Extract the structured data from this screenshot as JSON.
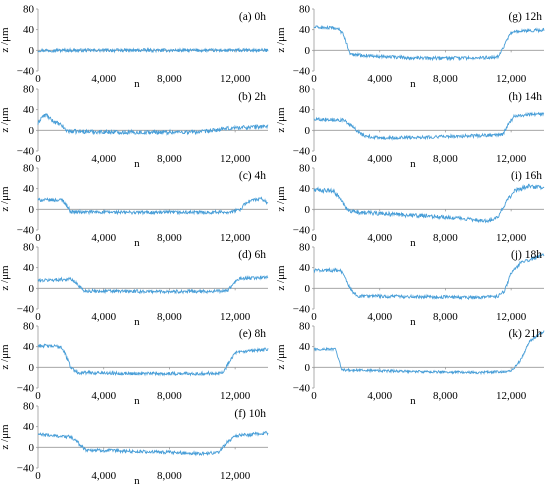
{
  "figure": {
    "xlabel": "n",
    "ylabel": "z /μm",
    "line_color": "#4a9fd8",
    "axis_color": "#9a9a9a",
    "text_color": "#000000"
  },
  "chart_data": [
    {
      "id": "a",
      "type": "line",
      "label": "(a) 0h",
      "xlabel": "n",
      "ylabel": "z /μm",
      "xlim": [
        0,
        14000
      ],
      "ylim": [
        -40,
        80
      ],
      "xticks": [
        {
          "v": 0,
          "t": "0"
        },
        {
          "v": 4000,
          "t": "4,000"
        },
        {
          "v": 8000,
          "t": "8,000"
        },
        {
          "v": 12000,
          "t": "12,000"
        }
      ],
      "yticks": [
        {
          "v": -40,
          "t": "−40"
        },
        {
          "v": 0,
          "t": "0"
        },
        {
          "v": 40,
          "t": "40"
        },
        {
          "v": 80,
          "t": "80"
        }
      ],
      "series": [
        {
          "x": [
            0,
            2000,
            4000,
            6000,
            8000,
            10000,
            12000,
            14000
          ],
          "y": [
            0,
            0,
            0,
            0,
            0,
            0,
            0,
            0
          ],
          "noise": 2
        }
      ]
    },
    {
      "id": "b",
      "type": "line",
      "label": "(b) 2h",
      "xlabel": "n",
      "ylabel": "z /μm",
      "xlim": [
        0,
        14000
      ],
      "ylim": [
        -40,
        80
      ],
      "xticks": [
        {
          "v": 0,
          "t": "0"
        },
        {
          "v": 4000,
          "t": "4,000"
        },
        {
          "v": 8000,
          "t": "8,000"
        },
        {
          "v": 12000,
          "t": "12,000"
        }
      ],
      "yticks": [
        {
          "v": -40,
          "t": "−40"
        },
        {
          "v": 0,
          "t": "0"
        },
        {
          "v": 40,
          "t": "40"
        },
        {
          "v": 80,
          "t": "80"
        }
      ],
      "series": [
        {
          "x": [
            0,
            200,
            500,
            800,
            1100,
            1500,
            1700,
            2000,
            6000,
            10000,
            12000,
            14000
          ],
          "y": [
            12,
            25,
            30,
            20,
            15,
            8,
            0,
            -2,
            -4,
            -3,
            5,
            8
          ],
          "noise": 2.5
        }
      ]
    },
    {
      "id": "c",
      "type": "line",
      "label": "(c) 4h",
      "xlabel": "n",
      "ylabel": "z /μm",
      "xlim": [
        0,
        14000
      ],
      "ylim": [
        -40,
        80
      ],
      "xticks": [
        {
          "v": 0,
          "t": "0"
        },
        {
          "v": 4000,
          "t": "4,000"
        },
        {
          "v": 8000,
          "t": "8,000"
        },
        {
          "v": 12000,
          "t": "12,000"
        }
      ],
      "yticks": [
        {
          "v": -40,
          "t": "−40"
        },
        {
          "v": 0,
          "t": "0"
        },
        {
          "v": 40,
          "t": "40"
        },
        {
          "v": 80,
          "t": "80"
        }
      ],
      "series": [
        {
          "x": [
            0,
            1500,
            1700,
            2000,
            6000,
            10000,
            11800,
            12300,
            12700,
            13100,
            13600,
            14000
          ],
          "y": [
            18,
            18,
            10,
            -5,
            -6,
            -6,
            -5,
            0,
            14,
            18,
            20,
            12
          ],
          "noise": 2
        }
      ]
    },
    {
      "id": "d",
      "type": "line",
      "label": "(d) 6h",
      "xlabel": "n",
      "ylabel": "z /μm",
      "xlim": [
        0,
        14000
      ],
      "ylim": [
        -40,
        80
      ],
      "xticks": [
        {
          "v": 0,
          "t": "0"
        },
        {
          "v": 4000,
          "t": "4,000"
        },
        {
          "v": 8000,
          "t": "8,000"
        },
        {
          "v": 12000,
          "t": "12,000"
        }
      ],
      "yticks": [
        {
          "v": -40,
          "t": "−40"
        },
        {
          "v": 0,
          "t": "0"
        },
        {
          "v": 40,
          "t": "40"
        },
        {
          "v": 80,
          "t": "80"
        }
      ],
      "series": [
        {
          "x": [
            0,
            2000,
            2400,
            2800,
            6000,
            10000,
            11500,
            11800,
            12200,
            14000
          ],
          "y": [
            15,
            18,
            8,
            -5,
            -6,
            -6,
            -5,
            5,
            18,
            22
          ],
          "noise": 2
        }
      ]
    },
    {
      "id": "e",
      "type": "line",
      "label": "(e) 8h",
      "xlabel": "n",
      "ylabel": "z /μm",
      "xlim": [
        0,
        14000
      ],
      "ylim": [
        -40,
        80
      ],
      "xticks": [
        {
          "v": 0,
          "t": "0"
        },
        {
          "v": 4000,
          "t": "4,000"
        },
        {
          "v": 8000,
          "t": "8,000"
        },
        {
          "v": 12000,
          "t": "12,000"
        }
      ],
      "yticks": [
        {
          "v": -40,
          "t": "−40"
        },
        {
          "v": 0,
          "t": "0"
        },
        {
          "v": 40,
          "t": "40"
        },
        {
          "v": 80,
          "t": "80"
        }
      ],
      "series": [
        {
          "x": [
            0,
            1400,
            1600,
            2000,
            2400,
            6000,
            10000,
            11300,
            11600,
            12000,
            14000
          ],
          "y": [
            42,
            40,
            30,
            0,
            -10,
            -12,
            -12,
            -10,
            10,
            28,
            35
          ],
          "noise": 2
        }
      ]
    },
    {
      "id": "f",
      "type": "line",
      "label": "(f) 10h",
      "xlabel": "n",
      "ylabel": "z /μm",
      "xlim": [
        0,
        14000
      ],
      "ylim": [
        -40,
        80
      ],
      "xticks": [
        {
          "v": 0,
          "t": "0"
        },
        {
          "v": 4000,
          "t": "4,000"
        },
        {
          "v": 8000,
          "t": "8,000"
        },
        {
          "v": 12000,
          "t": "12,000"
        }
      ],
      "yticks": [
        {
          "v": -40,
          "t": "−40"
        },
        {
          "v": 0,
          "t": "0"
        },
        {
          "v": 40,
          "t": "40"
        },
        {
          "v": 80,
          "t": "80"
        }
      ],
      "series": [
        {
          "x": [
            0,
            2000,
            2400,
            2900,
            6000,
            10000,
            11000,
            11500,
            12000,
            14000
          ],
          "y": [
            25,
            20,
            10,
            -5,
            -8,
            -12,
            -10,
            10,
            22,
            28
          ],
          "noise": 2
        }
      ]
    },
    {
      "id": "g",
      "type": "line",
      "label": "(g) 12h",
      "xlabel": "n",
      "ylabel": "z /μm",
      "xlim": [
        0,
        14000
      ],
      "ylim": [
        -40,
        80
      ],
      "xticks": [
        {
          "v": 0,
          "t": "0"
        },
        {
          "v": 4000,
          "t": "4,000"
        },
        {
          "v": 8000,
          "t": "8,000"
        },
        {
          "v": 12000,
          "t": "12,000"
        }
      ],
      "yticks": [
        {
          "v": -40,
          "t": "−40"
        },
        {
          "v": 0,
          "t": "0"
        },
        {
          "v": 40,
          "t": "40"
        },
        {
          "v": 80,
          "t": "80"
        }
      ],
      "series": [
        {
          "x": [
            0,
            1500,
            1800,
            2200,
            6000,
            10000,
            11200,
            11600,
            12000,
            14000
          ],
          "y": [
            45,
            42,
            30,
            -8,
            -15,
            -15,
            -12,
            10,
            35,
            40
          ],
          "noise": 2
        }
      ]
    },
    {
      "id": "h",
      "type": "line",
      "label": "(h) 14h",
      "xlabel": "n",
      "ylabel": "z /μm",
      "xlim": [
        0,
        14000
      ],
      "ylim": [
        -40,
        80
      ],
      "xticks": [
        {
          "v": 0,
          "t": "0"
        },
        {
          "v": 4000,
          "t": "4,000"
        },
        {
          "v": 8000,
          "t": "8,000"
        },
        {
          "v": 12000,
          "t": "12,000"
        }
      ],
      "yticks": [
        {
          "v": -40,
          "t": "−40"
        },
        {
          "v": 0,
          "t": "0"
        },
        {
          "v": 40,
          "t": "40"
        },
        {
          "v": 80,
          "t": "80"
        }
      ],
      "series": [
        {
          "x": [
            0,
            1800,
            2200,
            3000,
            4000,
            8000,
            10500,
            11500,
            11800,
            12200,
            14000
          ],
          "y": [
            22,
            20,
            10,
            -10,
            -15,
            -12,
            -10,
            -8,
            10,
            28,
            32
          ],
          "noise": 2
        }
      ]
    },
    {
      "id": "i",
      "type": "line",
      "label": "(i) 16h",
      "xlabel": "n",
      "ylabel": "z /μm",
      "xlim": [
        0,
        14000
      ],
      "ylim": [
        -40,
        80
      ],
      "xticks": [
        {
          "v": 0,
          "t": "0"
        },
        {
          "v": 4000,
          "t": "4,000"
        },
        {
          "v": 8000,
          "t": "8,000"
        },
        {
          "v": 12000,
          "t": "12,000"
        }
      ],
      "yticks": [
        {
          "v": -40,
          "t": "−40"
        },
        {
          "v": 0,
          "t": "0"
        },
        {
          "v": 40,
          "t": "40"
        },
        {
          "v": 80,
          "t": "80"
        }
      ],
      "series": [
        {
          "x": [
            0,
            1200,
            1600,
            2000,
            2400,
            5000,
            8000,
            10500,
            11200,
            11700,
            12200,
            13000,
            14000
          ],
          "y": [
            38,
            35,
            20,
            0,
            -5,
            -10,
            -15,
            -22,
            -15,
            15,
            35,
            45,
            42
          ],
          "noise": 2.5
        }
      ]
    },
    {
      "id": "j",
      "type": "line",
      "label": "(j) 18h",
      "xlabel": "n",
      "ylabel": "z /μm",
      "xlim": [
        0,
        14000
      ],
      "ylim": [
        -40,
        80
      ],
      "xticks": [
        {
          "v": 0,
          "t": "0"
        },
        {
          "v": 4000,
          "t": "4,000"
        },
        {
          "v": 8000,
          "t": "8,000"
        },
        {
          "v": 12000,
          "t": "12,000"
        }
      ],
      "yticks": [
        {
          "v": -40,
          "t": "−40"
        },
        {
          "v": 0,
          "t": "0"
        },
        {
          "v": 40,
          "t": "40"
        },
        {
          "v": 80,
          "t": "80"
        }
      ],
      "series": [
        {
          "x": [
            0,
            1600,
            1900,
            2200,
            2600,
            6000,
            10000,
            11200,
            11600,
            12000,
            12600,
            14000
          ],
          "y": [
            35,
            35,
            20,
            0,
            -15,
            -16,
            -18,
            -15,
            -5,
            30,
            50,
            65
          ],
          "noise": 2
        }
      ]
    },
    {
      "id": "k",
      "type": "line",
      "label": "(k) 21h",
      "xlabel": "n",
      "ylabel": "z /μm",
      "xlim": [
        0,
        14000
      ],
      "ylim": [
        -40,
        80
      ],
      "xticks": [
        {
          "v": 0,
          "t": "0"
        },
        {
          "v": 4000,
          "t": "4,000"
        },
        {
          "v": 8000,
          "t": "8,000"
        },
        {
          "v": 12000,
          "t": "12,000"
        }
      ],
      "yticks": [
        {
          "v": -40,
          "t": "−40"
        },
        {
          "v": 0,
          "t": "0"
        },
        {
          "v": 40,
          "t": "40"
        },
        {
          "v": 80,
          "t": "80"
        }
      ],
      "series": [
        {
          "x": [
            0,
            1300,
            1500,
            1700,
            6000,
            10000,
            12000,
            12600,
            13100,
            14000
          ],
          "y": [
            35,
            35,
            15,
            -5,
            -8,
            -10,
            -8,
            15,
            50,
            70
          ],
          "noise": 1.5
        }
      ]
    }
  ]
}
